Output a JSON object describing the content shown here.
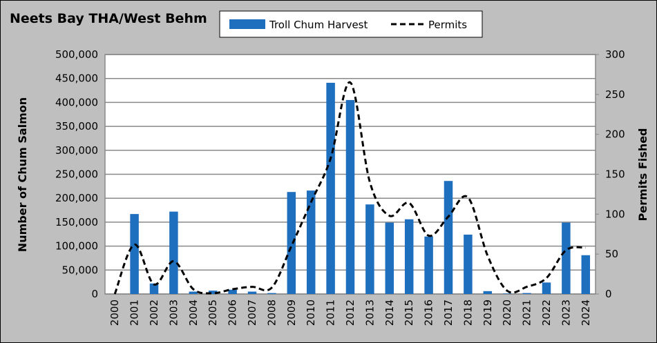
{
  "chart_data": {
    "type": "bar",
    "title": "Neets Bay THA/West Behm",
    "y_label": "Number of Chum Salmon",
    "y2_label": "Permits Fished",
    "categories": [
      "2000",
      "2001",
      "2002",
      "2003",
      "2004",
      "2005",
      "2006",
      "2007",
      "2008",
      "2009",
      "2010",
      "2011",
      "2012",
      "2013",
      "2014",
      "2015",
      "2016",
      "2017",
      "2018",
      "2019",
      "2020",
      "2021",
      "2022",
      "2023",
      "2024"
    ],
    "series": [
      {
        "name": "Troll Chum Harvest",
        "type": "bar",
        "color": "#1f6fbf",
        "values": [
          0,
          167000,
          22000,
          172000,
          5000,
          7000,
          9000,
          5000,
          2000,
          213000,
          216000,
          441000,
          405000,
          187000,
          149000,
          156000,
          120000,
          236000,
          124000,
          6000,
          1000,
          2000,
          24000,
          149000,
          81000
        ]
      },
      {
        "name": "Permits",
        "type": "line",
        "axis": "y2",
        "color": "#000000",
        "dash": true,
        "values": [
          0,
          62,
          12,
          41,
          6,
          1,
          6,
          9,
          8,
          60,
          115,
          170,
          265,
          140,
          98,
          114,
          73,
          97,
          121,
          48,
          4,
          9,
          20,
          55,
          58
        ]
      }
    ],
    "ylim": [
      0,
      500000
    ],
    "yticks": [
      0,
      {
        "value": 50000,
        "label": "50,000"
      },
      {
        "value": 100000,
        "label": "100,000"
      },
      {
        "value": 150000,
        "label": "150,000"
      },
      {
        "value": 200000,
        "label": "200,000"
      },
      {
        "value": 250000,
        "label": "250,000"
      },
      {
        "value": 300000,
        "label": "300,000"
      },
      {
        "value": 350000,
        "label": "350,000"
      },
      {
        "value": 400000,
        "label": "400,000"
      },
      {
        "value": 450000,
        "label": "450,000"
      },
      {
        "value": 500000,
        "label": "500,000"
      }
    ],
    "y2lim": [
      0,
      300
    ],
    "y2ticks": [
      0,
      50,
      100,
      150,
      200,
      250,
      300
    ],
    "grid": true,
    "legend": "top"
  }
}
